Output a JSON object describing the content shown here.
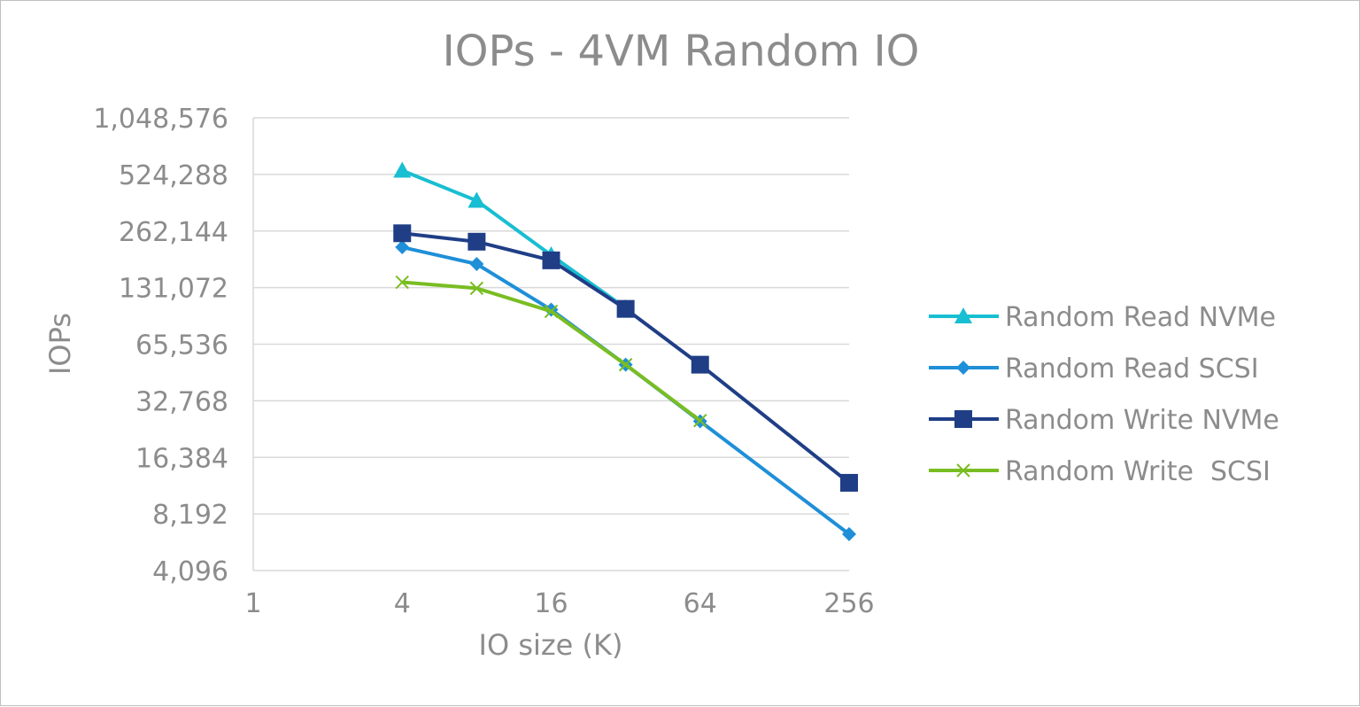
{
  "chart_data": {
    "type": "line",
    "title": "IOPs - 4VM Random IO",
    "xlabel": "IO size (K)",
    "ylabel": "IOPs",
    "x_scale": "log2",
    "y_scale": "log2",
    "xlim": [
      1,
      256
    ],
    "ylim": [
      4096,
      1048576
    ],
    "x_ticks": [
      "1",
      "4",
      "16",
      "64",
      "256"
    ],
    "y_ticks": [
      "4,096",
      "8,192",
      "16,384",
      "32,768",
      "65,536",
      "131,072",
      "262,144",
      "524,288",
      "1,048,576"
    ],
    "grid": "horizontal",
    "legend_position": "right",
    "series": [
      {
        "name": "Random Read NVMe",
        "color": "#18bed1",
        "marker": "triangle",
        "points": [
          [
            4,
            550000
          ],
          [
            8,
            380000
          ],
          [
            16,
            195000
          ],
          [
            32,
            102000
          ]
        ]
      },
      {
        "name": "Random Read SCSI",
        "color": "#1f8fd8",
        "marker": "diamond",
        "points": [
          [
            4,
            215000
          ],
          [
            8,
            175000
          ],
          [
            16,
            100000
          ],
          [
            32,
            51000
          ],
          [
            64,
            25500
          ],
          [
            256,
            6400
          ]
        ]
      },
      {
        "name": "Random Write NVMe",
        "color": "#1f3e86",
        "marker": "square",
        "points": [
          [
            4,
            255000
          ],
          [
            8,
            230000
          ],
          [
            16,
            183000
          ],
          [
            32,
            101000
          ],
          [
            64,
            51000
          ],
          [
            256,
            12000
          ]
        ]
      },
      {
        "name": "Random Write  SCSI",
        "color": "#79bd22",
        "marker": "x",
        "points": [
          [
            4,
            140000
          ],
          [
            8,
            130000
          ],
          [
            16,
            98000
          ],
          [
            32,
            51000
          ],
          [
            64,
            25700
          ]
        ]
      }
    ]
  }
}
